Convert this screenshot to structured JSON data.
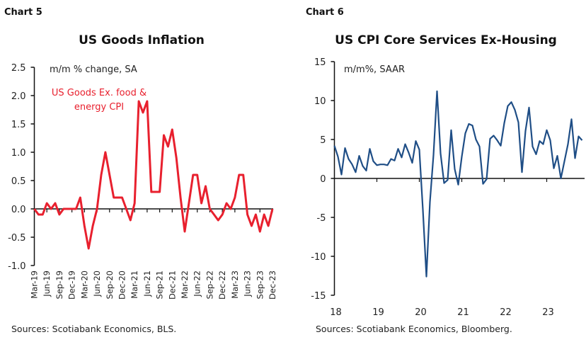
{
  "chart_data": [
    {
      "type": "line",
      "chart_number": "Chart 5",
      "title": "US Goods Inflation",
      "units_note": "m/m % change, SA",
      "source": "Sources: Scotiabank Economics, BLS.",
      "ylim": [
        -1.0,
        2.5
      ],
      "yticks": [
        "2.5",
        "2.0",
        "1.5",
        "1.0",
        "0.5",
        "0.0",
        "-0.5",
        "-1.0"
      ],
      "ytick_values": [
        2.5,
        2.0,
        1.5,
        1.0,
        0.5,
        0.0,
        -0.5,
        -1.0
      ],
      "xtick_labels": [
        "Mar-19",
        "Jun-19",
        "Sep-19",
        "Dec-19",
        "Mar-20",
        "Jun-20",
        "Sep-20",
        "Dec-20",
        "Mar-21",
        "Jun-21",
        "Sep-21",
        "Dec-21",
        "Mar-22",
        "Jun-22",
        "Sep-22",
        "Dec-22",
        "Mar-23",
        "Jun-23",
        "Sep-23",
        "Dec-23"
      ],
      "grid": false,
      "legend": "top-left",
      "x": [
        "Mar-19",
        "Apr-19",
        "May-19",
        "Jun-19",
        "Jul-19",
        "Aug-19",
        "Sep-19",
        "Oct-19",
        "Nov-19",
        "Dec-19",
        "Jan-20",
        "Feb-20",
        "Mar-20",
        "Apr-20",
        "May-20",
        "Jun-20",
        "Jul-20",
        "Aug-20",
        "Sep-20",
        "Oct-20",
        "Nov-20",
        "Dec-20",
        "Jan-21",
        "Feb-21",
        "Mar-21",
        "Apr-21",
        "May-21",
        "Jun-21",
        "Jul-21",
        "Aug-21",
        "Sep-21",
        "Oct-21",
        "Nov-21",
        "Dec-21",
        "Jan-22",
        "Feb-22",
        "Mar-22",
        "Apr-22",
        "May-22",
        "Jun-22",
        "Jul-22",
        "Aug-22",
        "Sep-22",
        "Oct-22",
        "Nov-22",
        "Dec-22",
        "Jan-23",
        "Feb-23",
        "Mar-23",
        "Apr-23",
        "May-23",
        "Jun-23",
        "Jul-23",
        "Aug-23",
        "Sep-23",
        "Oct-23",
        "Nov-23",
        "Dec-23"
      ],
      "series": [
        {
          "name": "US Goods Ex. food & energy CPI",
          "name_lines": [
            "US Goods Ex. food &",
            "energy CPI"
          ],
          "color": "#e8202e",
          "values": [
            0.0,
            -0.1,
            -0.1,
            0.1,
            0.0,
            0.1,
            -0.1,
            0.0,
            0.0,
            0.0,
            0.0,
            0.2,
            -0.3,
            -0.7,
            -0.3,
            0.0,
            0.6,
            1.0,
            0.6,
            0.2,
            0.2,
            0.2,
            0.0,
            -0.2,
            0.1,
            1.9,
            1.7,
            1.9,
            0.3,
            0.3,
            0.3,
            1.3,
            1.1,
            1.4,
            0.9,
            0.2,
            -0.4,
            0.1,
            0.6,
            0.6,
            0.1,
            0.4,
            0.0,
            -0.1,
            -0.2,
            -0.1,
            0.1,
            0.0,
            0.2,
            0.6,
            0.6,
            -0.1,
            -0.3,
            -0.1,
            -0.4,
            -0.1,
            -0.3,
            0.0
          ]
        }
      ]
    },
    {
      "type": "line",
      "chart_number": "Chart 6",
      "title": "US CPI Core Services Ex-Housing",
      "units_note": "m/m%, SAAR",
      "source": "Sources: Scotiabank Economics, Bloomberg.",
      "ylim": [
        -15,
        15
      ],
      "yticks": [
        "15",
        "10",
        "5",
        "0",
        "-5",
        "-10",
        "-15"
      ],
      "ytick_values": [
        15,
        10,
        5,
        0,
        -5,
        -10,
        -15
      ],
      "xtick_labels": [
        "18",
        "19",
        "20",
        "21",
        "22",
        "23"
      ],
      "grid": false,
      "x": [
        "2018-01",
        "2018-02",
        "2018-03",
        "2018-04",
        "2018-05",
        "2018-06",
        "2018-07",
        "2018-08",
        "2018-09",
        "2018-10",
        "2018-11",
        "2018-12",
        "2019-01",
        "2019-02",
        "2019-03",
        "2019-04",
        "2019-05",
        "2019-06",
        "2019-07",
        "2019-08",
        "2019-09",
        "2019-10",
        "2019-11",
        "2019-12",
        "2020-01",
        "2020-02",
        "2020-03",
        "2020-04",
        "2020-05",
        "2020-06",
        "2020-07",
        "2020-08",
        "2020-09",
        "2020-10",
        "2020-11",
        "2020-12",
        "2021-01",
        "2021-02",
        "2021-03",
        "2021-04",
        "2021-05",
        "2021-06",
        "2021-07",
        "2021-08",
        "2021-09",
        "2021-10",
        "2021-11",
        "2021-12",
        "2022-01",
        "2022-02",
        "2022-03",
        "2022-04",
        "2022-05",
        "2022-06",
        "2022-07",
        "2022-08",
        "2022-09",
        "2022-10",
        "2022-11",
        "2022-12",
        "2023-01",
        "2023-02",
        "2023-03",
        "2023-04",
        "2023-05",
        "2023-06",
        "2023-07",
        "2023-08",
        "2023-09",
        "2023-10",
        "2023-11"
      ],
      "series": [
        {
          "color": "#1f4e86",
          "values": [
            4.2,
            2.8,
            0.5,
            3.9,
            2.5,
            1.8,
            0.8,
            2.9,
            1.6,
            1.0,
            3.8,
            2.2,
            1.7,
            1.8,
            1.8,
            1.7,
            2.5,
            2.3,
            3.8,
            2.7,
            4.4,
            3.3,
            2.0,
            4.8,
            3.7,
            -4.0,
            -12.6,
            -3.0,
            3.0,
            11.2,
            3.2,
            -0.6,
            -0.2,
            6.2,
            1.2,
            -0.8,
            2.8,
            5.8,
            7.0,
            6.8,
            5.0,
            4.1,
            -0.7,
            -0.1,
            5.1,
            5.5,
            4.9,
            4.2,
            7.1,
            9.3,
            9.8,
            8.8,
            7.2,
            0.8,
            6.1,
            9.1,
            4.1,
            3.1,
            4.8,
            4.4,
            6.2,
            4.9,
            1.3,
            2.9,
            0.0,
            2.2,
            4.4,
            7.6,
            2.6,
            5.4,
            4.9
          ]
        }
      ]
    }
  ]
}
